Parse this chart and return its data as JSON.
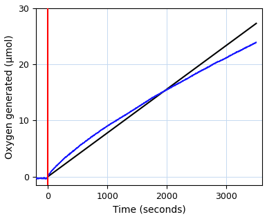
{
  "title": "",
  "xlabel": "Time (seconds)",
  "ylabel": "Oxygen generated (μmol)",
  "xlim": [
    -200,
    3600
  ],
  "ylim": [
    -1.5,
    30
  ],
  "xticks": [
    0,
    1000,
    2000,
    3000
  ],
  "yticks": [
    0,
    10,
    20,
    30
  ],
  "black_line_x": [
    0,
    3500
  ],
  "black_line_y": [
    0,
    27.3
  ],
  "red_vline_x": 0,
  "blue_curve_x_end": 3500,
  "blue_curve_y_end": 24.2,
  "blue_curve_inflection": 400,
  "blue_noise_seed": 7,
  "grid_color": "#c5d9f1",
  "background_color": "#ffffff",
  "line_color_black": "#000000",
  "line_color_red": "#ff0000",
  "line_color_blue": "#1a1aff",
  "xlabel_fontsize": 10,
  "ylabel_fontsize": 10,
  "tick_fontsize": 9,
  "black_linewidth": 1.5,
  "red_linewidth": 1.5,
  "blue_linewidth": 1.0
}
